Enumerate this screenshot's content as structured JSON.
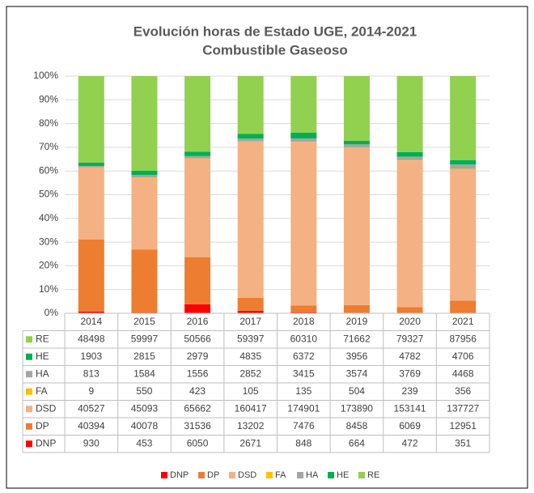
{
  "chart_data": {
    "type": "stacked_bar_percent",
    "title": "Evolución horas de Estado UGE, 2014-2021",
    "subtitle": "Combustible Gaseoso",
    "categories": [
      "2014",
      "2015",
      "2016",
      "2017",
      "2018",
      "2019",
      "2020",
      "2021"
    ],
    "series": [
      {
        "name": "DNP",
        "color": "#ff0000",
        "values": [
          930,
          453,
          6050,
          2671,
          848,
          664,
          472,
          351
        ]
      },
      {
        "name": "DP",
        "color": "#ed7d31",
        "values": [
          40394,
          40078,
          31536,
          13202,
          7476,
          8458,
          6069,
          12951
        ]
      },
      {
        "name": "DSD",
        "color": "#f4b183",
        "values": [
          40527,
          45093,
          65662,
          160417,
          174901,
          173890,
          153141,
          137727
        ]
      },
      {
        "name": "FA",
        "color": "#ffc000",
        "values": [
          9,
          550,
          423,
          105,
          135,
          504,
          239,
          356
        ]
      },
      {
        "name": "HA",
        "color": "#a5a5a5",
        "values": [
          813,
          1584,
          1556,
          2852,
          3415,
          3574,
          3769,
          4468
        ]
      },
      {
        "name": "HE",
        "color": "#00b050",
        "values": [
          1903,
          2815,
          2979,
          4835,
          6372,
          3956,
          4782,
          4706
        ]
      },
      {
        "name": "RE",
        "color": "#92d050",
        "values": [
          48498,
          59997,
          50566,
          59397,
          60310,
          71662,
          79327,
          87956
        ]
      }
    ],
    "ylim": [
      0,
      100
    ],
    "yticks": [
      {
        "value": 0,
        "label": "0%"
      },
      {
        "value": 10,
        "label": "10%"
      },
      {
        "value": 20,
        "label": "20%"
      },
      {
        "value": 30,
        "label": "30%"
      },
      {
        "value": 40,
        "label": "40%"
      },
      {
        "value": 50,
        "label": "50%"
      },
      {
        "value": 60,
        "label": "60%"
      },
      {
        "value": 70,
        "label": "70%"
      },
      {
        "value": 80,
        "label": "80%"
      },
      {
        "value": 90,
        "label": "90%"
      },
      {
        "value": 100,
        "label": "100%"
      }
    ],
    "grid": true,
    "legend": "bottom"
  }
}
